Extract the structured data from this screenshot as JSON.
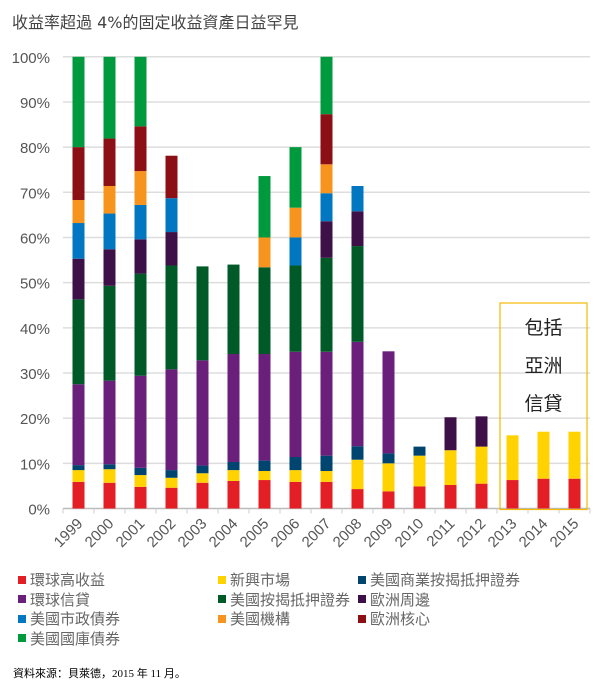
{
  "chart_data": {
    "type": "bar",
    "stacked": true,
    "title": "收益率超過 4%的固定收益資產日益罕見",
    "xlabel": "",
    "ylabel": "",
    "ylim": [
      0,
      100
    ],
    "y_ticks": [
      "0%",
      "10%",
      "20%",
      "30%",
      "40%",
      "50%",
      "60%",
      "70%",
      "80%",
      "90%",
      "100%"
    ],
    "grid": true,
    "legend_placement": "bottom",
    "categories": [
      "1999",
      "2000",
      "2001",
      "2002",
      "2003",
      "2004",
      "2005",
      "2006",
      "2007",
      "2008",
      "2009",
      "2010",
      "2011",
      "2012",
      "2013",
      "2014",
      "2015"
    ],
    "series": [
      {
        "name": "環球高收益",
        "color": "#e31e24",
        "values": [
          5.9,
          5.7,
          4.8,
          4.6,
          5.7,
          6.1,
          6.3,
          5.9,
          5.9,
          4.3,
          3.8,
          4.9,
          5.2,
          5.5,
          6.3,
          6.6,
          6.6
        ]
      },
      {
        "name": "新興市場",
        "color": "#ffd200",
        "values": [
          2.6,
          3.0,
          2.6,
          2.2,
          2.1,
          2.4,
          2.0,
          2.6,
          2.4,
          6.5,
          6.2,
          6.8,
          7.7,
          8.2,
          9.9,
          10.4,
          10.4
        ]
      },
      {
        "name": "美國商業按揭抵押證券",
        "color": "#004470",
        "values": [
          1.1,
          1.1,
          1.6,
          1.7,
          1.7,
          1.8,
          2.3,
          2.9,
          3.4,
          3.0,
          2.2,
          2.0,
          0,
          0,
          0,
          0,
          0
        ]
      },
      {
        "name": "環球信貸",
        "color": "#6a1f7a",
        "values": [
          17.9,
          18.5,
          20.4,
          22.3,
          23.3,
          23.9,
          23.6,
          23.3,
          23.0,
          23.1,
          22.6,
          0,
          0,
          0,
          0,
          0,
          0
        ]
      },
      {
        "name": "美國按揭抵押證券",
        "color": "#005a28",
        "values": [
          18.8,
          21.0,
          22.6,
          23.0,
          20.8,
          19.8,
          19.2,
          19.1,
          20.8,
          21.2,
          0,
          0,
          0,
          0,
          0,
          0,
          0
        ]
      },
      {
        "name": "歐洲周邊",
        "color": "#3e1048",
        "values": [
          9.0,
          8.1,
          7.6,
          7.4,
          0,
          0,
          0,
          0,
          8.1,
          7.7,
          0,
          0,
          7.3,
          6.7,
          0,
          0,
          0
        ]
      },
      {
        "name": "美國市政債券",
        "color": "#0077c0",
        "values": [
          7.9,
          7.9,
          7.6,
          7.5,
          0,
          0,
          0,
          6.2,
          6.2,
          5.6,
          0,
          0,
          0,
          0,
          0,
          0,
          0
        ]
      },
      {
        "name": "美國機構",
        "color": "#f7941d",
        "values": [
          5.1,
          6.1,
          7.5,
          0,
          0,
          0,
          6.6,
          6.6,
          6.4,
          0,
          0,
          0,
          0,
          0,
          0,
          0,
          0
        ]
      },
      {
        "name": "歐洲核心",
        "color": "#8b0f14",
        "values": [
          11.7,
          10.5,
          9.9,
          9.4,
          0,
          0,
          0,
          0,
          11.1,
          0,
          0,
          0,
          0,
          0,
          0,
          0,
          0
        ]
      },
      {
        "name": "美國國庫債券",
        "color": "#009a3e",
        "values": [
          20.0,
          18.1,
          15.4,
          0,
          0,
          0,
          13.6,
          13.4,
          12.7,
          0,
          0,
          0,
          0,
          0,
          0,
          0,
          0
        ]
      }
    ],
    "annotation": {
      "lines": [
        "包括",
        "亞洲",
        "信貸"
      ],
      "covers": [
        "2013",
        "2014",
        "2015"
      ],
      "border_color": "#f5b800"
    }
  },
  "source": "資料來源：貝萊德，2015 年 11 月。"
}
